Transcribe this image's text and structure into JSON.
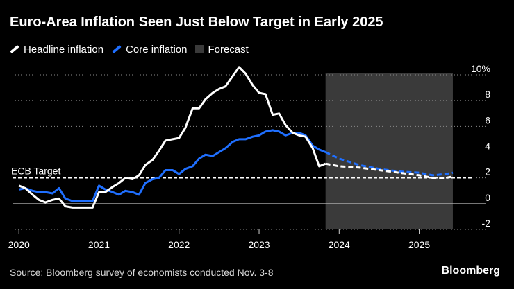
{
  "header": {
    "title": "Euro-Area Inflation Seen Just Below Target in Early 2025"
  },
  "legend": [
    {
      "label": "Headline inflation",
      "color": "#ffffff",
      "kind": "line"
    },
    {
      "label": "Core inflation",
      "color": "#1f6fff",
      "kind": "line"
    },
    {
      "label": "Forecast",
      "color": "#3a3a3a",
      "kind": "box"
    }
  ],
  "footer": {
    "source": "Source: Bloomberg survey of economists conducted Nov. 3-8",
    "brand": "Bloomberg"
  },
  "chart_data": {
    "type": "line",
    "title": "Euro-Area Inflation Seen Just Below Target in Early 2025",
    "xlabel": "",
    "ylabel": "",
    "x_unit": "year",
    "xlim": [
      2019.92,
      2025.75
    ],
    "ylim": [
      -2,
      10
    ],
    "x_ticks": [
      {
        "value": 2020,
        "label": "2020"
      },
      {
        "value": 2021,
        "label": "2021"
      },
      {
        "value": 2022,
        "label": "2022"
      },
      {
        "value": 2023,
        "label": "2023"
      },
      {
        "value": 2024,
        "label": "2024"
      },
      {
        "value": 2025,
        "label": "2025"
      }
    ],
    "y_ticks": [
      {
        "value": 10,
        "label": "10%"
      },
      {
        "value": 8,
        "label": "8"
      },
      {
        "value": 6,
        "label": "6"
      },
      {
        "value": 4,
        "label": "4"
      },
      {
        "value": 2,
        "label": "2"
      },
      {
        "value": 0,
        "label": "0"
      },
      {
        "value": -2,
        "label": "-2"
      }
    ],
    "grid": true,
    "forecast_region": {
      "x_start": 2023.83,
      "x_end": 2025.42,
      "label": "Forecast",
      "color": "#3a3a3a"
    },
    "reference_line": {
      "y": 2,
      "label": "ECB Target",
      "color": "#ffffff",
      "style": "dashed"
    },
    "series": [
      {
        "name": "Headline inflation",
        "color": "#ffffff",
        "style": "solid",
        "x": [
          2020.0,
          2020.08,
          2020.17,
          2020.25,
          2020.33,
          2020.42,
          2020.5,
          2020.58,
          2020.67,
          2020.75,
          2020.83,
          2020.92,
          2021.0,
          2021.08,
          2021.17,
          2021.25,
          2021.33,
          2021.42,
          2021.5,
          2021.58,
          2021.67,
          2021.75,
          2021.83,
          2021.92,
          2022.0,
          2022.08,
          2022.17,
          2022.25,
          2022.33,
          2022.42,
          2022.5,
          2022.58,
          2022.67,
          2022.75,
          2022.83,
          2022.92,
          2023.0,
          2023.08,
          2023.17,
          2023.25,
          2023.33,
          2023.42,
          2023.5,
          2023.58,
          2023.67,
          2023.75,
          2023.83
        ],
        "values": [
          1.4,
          1.2,
          0.7,
          0.3,
          0.1,
          0.3,
          0.4,
          -0.2,
          -0.3,
          -0.3,
          -0.3,
          -0.3,
          0.9,
          0.9,
          1.3,
          1.6,
          2.0,
          1.9,
          2.2,
          3.0,
          3.4,
          4.1,
          4.9,
          5.0,
          5.1,
          5.9,
          7.4,
          7.4,
          8.1,
          8.6,
          8.9,
          9.1,
          9.9,
          10.6,
          10.1,
          9.2,
          8.6,
          8.5,
          6.9,
          7.0,
          6.1,
          5.5,
          5.3,
          5.2,
          4.3,
          2.9,
          3.1
        ]
      },
      {
        "name": "Core inflation",
        "color": "#1f6fff",
        "style": "solid",
        "x": [
          2020.0,
          2020.08,
          2020.17,
          2020.25,
          2020.33,
          2020.42,
          2020.5,
          2020.58,
          2020.67,
          2020.75,
          2020.83,
          2020.92,
          2021.0,
          2021.08,
          2021.17,
          2021.25,
          2021.33,
          2021.42,
          2021.5,
          2021.58,
          2021.67,
          2021.75,
          2021.83,
          2021.92,
          2022.0,
          2022.08,
          2022.17,
          2022.25,
          2022.33,
          2022.42,
          2022.5,
          2022.58,
          2022.67,
          2022.75,
          2022.83,
          2022.92,
          2023.0,
          2023.08,
          2023.17,
          2023.25,
          2023.33,
          2023.42,
          2023.5,
          2023.58,
          2023.67,
          2023.75,
          2023.83
        ],
        "values": [
          1.1,
          1.2,
          1.0,
          0.9,
          0.9,
          0.8,
          1.2,
          0.4,
          0.2,
          0.2,
          0.2,
          0.2,
          1.4,
          1.1,
          0.9,
          0.7,
          1.0,
          0.9,
          0.7,
          1.6,
          1.9,
          2.0,
          2.6,
          2.6,
          2.3,
          2.7,
          2.9,
          3.5,
          3.8,
          3.7,
          4.0,
          4.3,
          4.8,
          5.0,
          5.0,
          5.2,
          5.3,
          5.6,
          5.7,
          5.6,
          5.3,
          5.5,
          5.5,
          5.3,
          4.5,
          4.2,
          4.0
        ]
      },
      {
        "name": "Headline inflation forecast",
        "color": "#ffffff",
        "style": "dashed",
        "x": [
          2023.83,
          2024.0,
          2024.25,
          2024.5,
          2024.75,
          2025.0,
          2025.17,
          2025.33,
          2025.42
        ],
        "values": [
          3.1,
          2.9,
          2.8,
          2.6,
          2.4,
          2.2,
          2.0,
          2.0,
          2.1
        ]
      },
      {
        "name": "Core inflation forecast",
        "color": "#1f6fff",
        "style": "dashed",
        "x": [
          2023.83,
          2024.0,
          2024.25,
          2024.5,
          2024.75,
          2025.0,
          2025.17,
          2025.33,
          2025.42
        ],
        "values": [
          4.0,
          3.5,
          3.0,
          2.7,
          2.5,
          2.4,
          2.2,
          2.3,
          2.4
        ]
      }
    ]
  }
}
